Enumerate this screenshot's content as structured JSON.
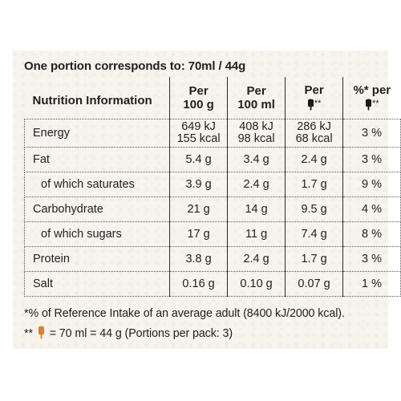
{
  "portion": "One portion corresponds to: 70ml / 44g",
  "header": {
    "name": "Nutrition Information",
    "col1_line1": "Per",
    "col1_line2": "100 g",
    "col2_line1": "Per",
    "col2_line2": "100 ml",
    "col3_line1": "Per",
    "col3_marker": "**",
    "col4_line1": "%* per",
    "col4_marker": "**"
  },
  "rows": [
    {
      "name": "Energy",
      "per100g": "649 kJ",
      "per100g_2": "155 kcal",
      "per100ml": "408 kJ",
      "per100ml_2": "98 kcal",
      "portion": "286 kJ",
      "portion_2": "68 kcal",
      "ri": "3 %"
    },
    {
      "name": "Fat",
      "per100g": "5.4 g",
      "per100ml": "3.4 g",
      "portion": "2.4 g",
      "ri": "3 %"
    },
    {
      "name": "of which saturates",
      "per100g": "3.9 g",
      "per100ml": "2.4 g",
      "portion": "1.7 g",
      "ri": "9 %"
    },
    {
      "name": "Carbohydrate",
      "per100g": "21 g",
      "per100ml": "14 g",
      "portion": "9.5 g",
      "ri": "4 %"
    },
    {
      "name": "of which sugars",
      "per100g": "17 g",
      "per100ml": "11 g",
      "portion": "7.4 g",
      "ri": "8 %"
    },
    {
      "name": "Protein",
      "per100g": "3.8 g",
      "per100ml": "2.4 g",
      "portion": "1.7 g",
      "ri": "3 %"
    },
    {
      "name": "Salt",
      "per100g": "0.16 g",
      "per100ml": "0.10 g",
      "portion": "0.07 g",
      "ri": "1 %"
    }
  ],
  "footnote1": "*% of Reference Intake of an average adult (8400 kJ/2000 kcal).",
  "footnote2_prefix": "**",
  "footnote2_text": "= 70 ml = 44 g (Portions per pack: 3)",
  "icons": {
    "header": "ice-cream-stick-icon",
    "footnote": "ice-cream-stick-icon"
  },
  "colors": {
    "icon_header": "#1a1a1a",
    "icon_footnote": "#d4862a",
    "panel": "#f7f4ee"
  }
}
